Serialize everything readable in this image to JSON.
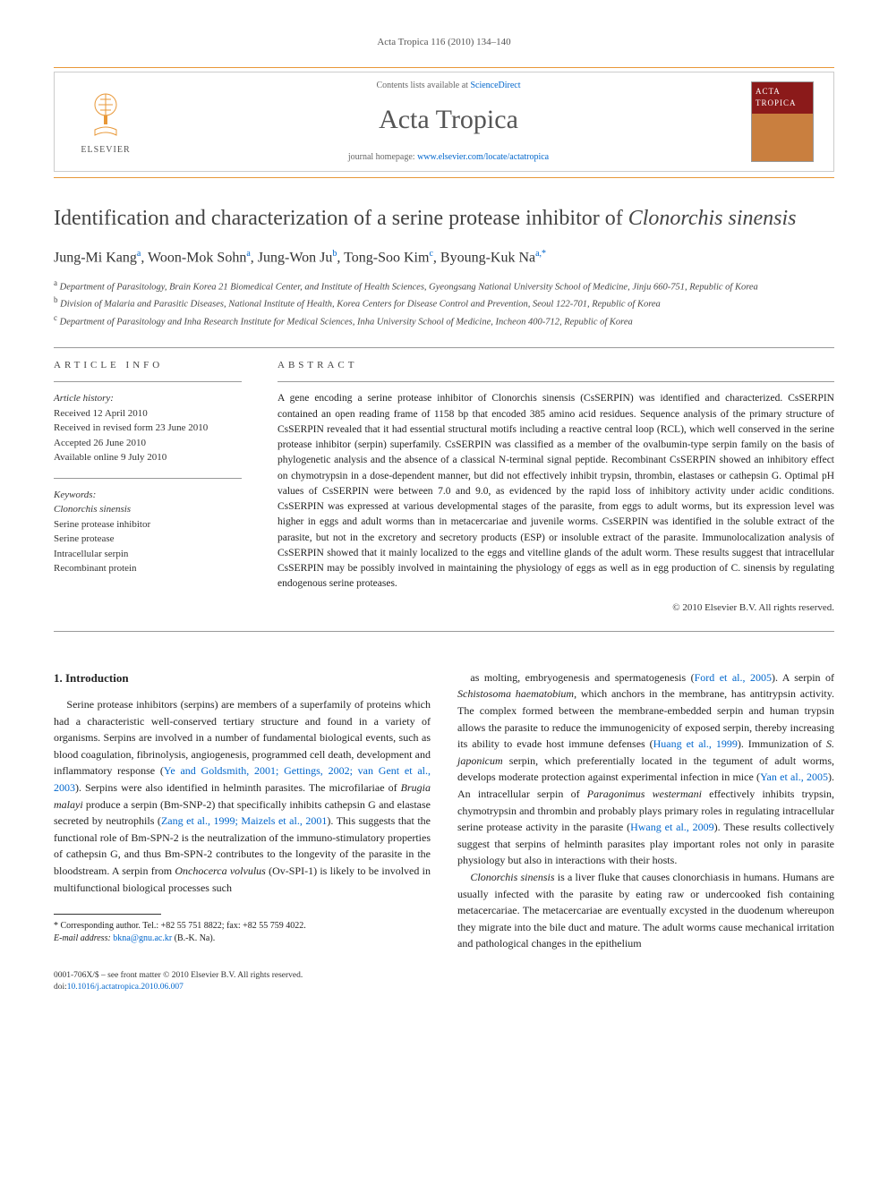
{
  "running_head": "Acta Tropica 116 (2010) 134–140",
  "banner": {
    "contents_prefix": "Contents lists available at ",
    "contents_link": "ScienceDirect",
    "journal_title": "Acta Tropica",
    "home_prefix": "journal homepage: ",
    "home_link": "www.elsevier.com/locate/actatropica",
    "publisher_name": "ELSEVIER",
    "cover_title": "ACTA TROPICA"
  },
  "article": {
    "title_pre": "Identification and characterization of a serine protease inhibitor of ",
    "title_em": "Clonorchis sinensis",
    "authors_html": "Jung-Mi Kang<sup>a</sup>, Woon-Mok Sohn<sup>a</sup>, Jung-Won Ju<sup>b</sup>, Tong-Soo Kim<sup>c</sup>, Byoung-Kuk Na<sup>a,*</sup>",
    "affiliations": [
      "a Department of Parasitology, Brain Korea 21 Biomedical Center, and Institute of Health Sciences, Gyeongsang National University School of Medicine, Jinju 660-751, Republic of Korea",
      "b Division of Malaria and Parasitic Diseases, National Institute of Health, Korea Centers for Disease Control and Prevention, Seoul 122-701, Republic of Korea",
      "c Department of Parasitology and Inha Research Institute for Medical Sciences, Inha University School of Medicine, Incheon 400-712, Republic of Korea"
    ]
  },
  "article_info": {
    "label": "ARTICLE INFO",
    "history_head": "Article history:",
    "history": [
      "Received 12 April 2010",
      "Received in revised form 23 June 2010",
      "Accepted 26 June 2010",
      "Available online 9 July 2010"
    ],
    "keywords_head": "Keywords:",
    "keywords": [
      "Clonorchis sinensis",
      "Serine protease inhibitor",
      "Serine protease",
      "Intracellular serpin",
      "Recombinant protein"
    ]
  },
  "abstract": {
    "label": "ABSTRACT",
    "text": "A gene encoding a serine protease inhibitor of Clonorchis sinensis (CsSERPIN) was identified and characterized. CsSERPIN contained an open reading frame of 1158 bp that encoded 385 amino acid residues. Sequence analysis of the primary structure of CsSERPIN revealed that it had essential structural motifs including a reactive central loop (RCL), which well conserved in the serine protease inhibitor (serpin) superfamily. CsSERPIN was classified as a member of the ovalbumin-type serpin family on the basis of phylogenetic analysis and the absence of a classical N-terminal signal peptide. Recombinant CsSERPIN showed an inhibitory effect on chymotrypsin in a dose-dependent manner, but did not effectively inhibit trypsin, thrombin, elastases or cathepsin G. Optimal pH values of CsSERPIN were between 7.0 and 9.0, as evidenced by the rapid loss of inhibitory activity under acidic conditions. CsSERPIN was expressed at various developmental stages of the parasite, from eggs to adult worms, but its expression level was higher in eggs and adult worms than in metacercariae and juvenile worms. CsSERPIN was identified in the soluble extract of the parasite, but not in the excretory and secretory products (ESP) or insoluble extract of the parasite. Immunolocalization analysis of CsSERPIN showed that it mainly localized to the eggs and vitelline glands of the adult worm. These results suggest that intracellular CsSERPIN may be possibly involved in maintaining the physiology of eggs as well as in egg production of C. sinensis by regulating endogenous serine proteases.",
    "copyright": "© 2010 Elsevier B.V. All rights reserved."
  },
  "body": {
    "intro_heading": "1. Introduction",
    "col1_p1": "Serine protease inhibitors (serpins) are members of a superfamily of proteins which had a characteristic well-conserved tertiary structure and found in a variety of organisms. Serpins are involved in a number of fundamental biological events, such as blood coagulation, fibrinolysis, angiogenesis, programmed cell death, development and inflammatory response (Ye and Goldsmith, 2001; Gettings, 2002; van Gent et al., 2003). Serpins were also identified in helminth parasites. The microfilariae of Brugia malayi produce a serpin (Bm-SNP-2) that specifically inhibits cathepsin G and elastase secreted by neutrophils (Zang et al., 1999; Maizels et al., 2001). This suggests that the functional role of Bm-SPN-2 is the neutralization of the immuno-stimulatory properties of cathepsin G, and thus Bm-SPN-2 contributes to the longevity of the parasite in the bloodstream. A serpin from Onchocerca volvulus (Ov-SPI-1) is likely to be involved in multifunctional biological processes such",
    "col2_p1": "as molting, embryogenesis and spermatogenesis (Ford et al., 2005). A serpin of Schistosoma haematobium, which anchors in the membrane, has antitrypsin activity. The complex formed between the membrane-embedded serpin and human trypsin allows the parasite to reduce the immunogenicity of exposed serpin, thereby increasing its ability to evade host immune defenses (Huang et al., 1999). Immunization of S. japonicum serpin, which preferentially located in the tegument of adult worms, develops moderate protection against experimental infection in mice (Yan et al., 2005). An intracellular serpin of Paragonimus westermani effectively inhibits trypsin, chymotrypsin and thrombin and probably plays primary roles in regulating intracellular serine protease activity in the parasite (Hwang et al., 2009). These results collectively suggest that serpins of helminth parasites play important roles not only in parasite physiology but also in interactions with their hosts.",
    "col2_p2": "Clonorchis sinensis is a liver fluke that causes clonorchiasis in humans. Humans are usually infected with the parasite by eating raw or undercooked fish containing metacercariae. The metacercariae are eventually excysted in the duodenum whereupon they migrate into the bile duct and mature. The adult worms cause mechanical irritation and pathological changes in the epithelium"
  },
  "footnotes": {
    "corr": "* Corresponding author. Tel.: +82 55 751 8822; fax: +82 55 759 4022.",
    "email_label": "E-mail address: ",
    "email": "bkna@gnu.ac.kr",
    "email_suffix": " (B.-K. Na)."
  },
  "footer": {
    "line1": "0001-706X/$ – see front matter © 2010 Elsevier B.V. All rights reserved.",
    "doi_prefix": "doi:",
    "doi": "10.1016/j.actatropica.2010.06.007"
  },
  "colors": {
    "accent_orange": "#e89838",
    "link_blue": "#0066cc",
    "text_gray": "#444444",
    "cover_red": "#8b1a1a"
  }
}
